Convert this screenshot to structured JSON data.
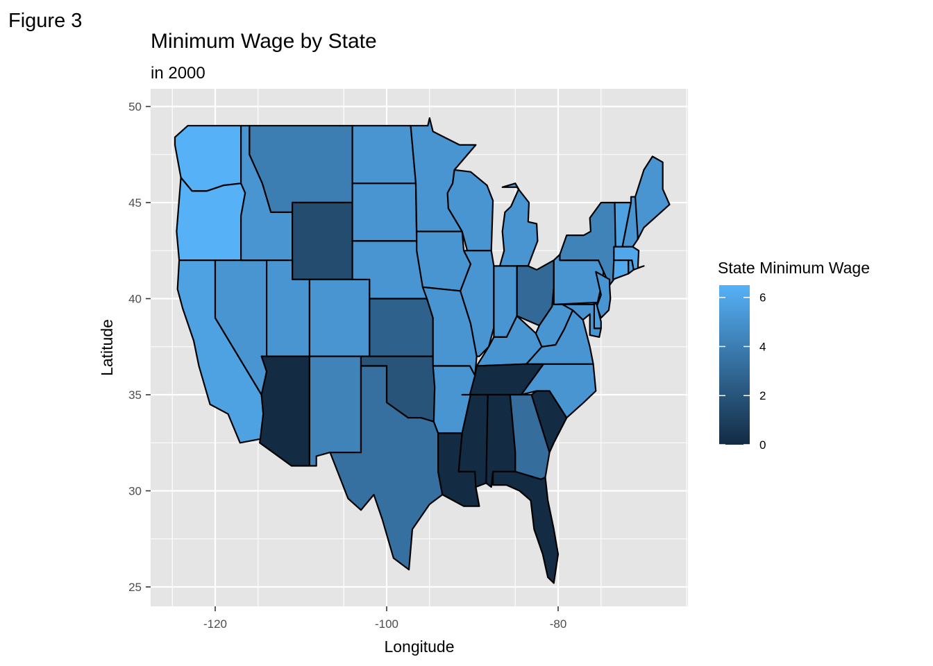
{
  "figure_label": "Figure 3",
  "title": "Minimum Wage by State",
  "subtitle": "in 2000",
  "colors": {
    "panel_bg": "#e5e5e5",
    "grid": "#ffffff",
    "low": "#132B43",
    "high": "#56B1F7",
    "state_border": "#000000"
  },
  "chart_data": {
    "type": "heatmap",
    "xlabel": "Longitude",
    "ylabel": "Latitude",
    "xlim": [
      -127.8,
      -65.5
    ],
    "ylim": [
      24,
      51
    ],
    "x_ticks": [
      -120,
      -100,
      -80
    ],
    "x_tick_labels": [
      "-120",
      "-100",
      "-80"
    ],
    "y_ticks": [
      25,
      30,
      35,
      40,
      45,
      50
    ],
    "y_tick_labels": [
      "25",
      "30",
      "35",
      "40",
      "45",
      "50"
    ],
    "grid": true,
    "legend": {
      "title": "State Minimum Wage",
      "placement": "right",
      "range": [
        0,
        6.5
      ],
      "breaks": [
        0,
        2,
        4,
        6
      ],
      "labels": [
        "0",
        "2",
        "4",
        "6"
      ]
    },
    "regions": [
      {
        "name": "Washington",
        "value": 6.5
      },
      {
        "name": "Oregon",
        "value": 6.5
      },
      {
        "name": "California",
        "value": 5.75
      },
      {
        "name": "Nevada",
        "value": 5.15
      },
      {
        "name": "Idaho",
        "value": 5.15
      },
      {
        "name": "Montana",
        "value": 4.0
      },
      {
        "name": "Wyoming",
        "value": 1.6
      },
      {
        "name": "Utah",
        "value": 5.15
      },
      {
        "name": "Arizona",
        "value": 0
      },
      {
        "name": "Colorado",
        "value": 5.15
      },
      {
        "name": "New Mexico",
        "value": 4.25
      },
      {
        "name": "North Dakota",
        "value": 5.15
      },
      {
        "name": "South Dakota",
        "value": 5.15
      },
      {
        "name": "Nebraska",
        "value": 5.15
      },
      {
        "name": "Kansas",
        "value": 2.65
      },
      {
        "name": "Oklahoma",
        "value": 2.0
      },
      {
        "name": "Texas",
        "value": 3.35
      },
      {
        "name": "Minnesota",
        "value": 5.15
      },
      {
        "name": "Iowa",
        "value": 5.15
      },
      {
        "name": "Missouri",
        "value": 5.15
      },
      {
        "name": "Arkansas",
        "value": 5.15
      },
      {
        "name": "Louisiana",
        "value": 0
      },
      {
        "name": "Wisconsin",
        "value": 5.15
      },
      {
        "name": "Illinois",
        "value": 5.15
      },
      {
        "name": "Indiana",
        "value": 5.15
      },
      {
        "name": "Michigan",
        "value": 5.15
      },
      {
        "name": "Ohio",
        "value": 3.0
      },
      {
        "name": "Kentucky",
        "value": 5.15
      },
      {
        "name": "Tennessee",
        "value": 0
      },
      {
        "name": "Mississippi",
        "value": 0
      },
      {
        "name": "Alabama",
        "value": 0
      },
      {
        "name": "Georgia",
        "value": 3.25
      },
      {
        "name": "Florida",
        "value": 0
      },
      {
        "name": "South Carolina",
        "value": 0
      },
      {
        "name": "North Carolina",
        "value": 5.15
      },
      {
        "name": "Virginia",
        "value": 5.15
      },
      {
        "name": "West Virginia",
        "value": 5.15
      },
      {
        "name": "Pennsylvania",
        "value": 5.15
      },
      {
        "name": "New York",
        "value": 4.25
      },
      {
        "name": "Vermont",
        "value": 5.75
      },
      {
        "name": "New Hampshire",
        "value": 5.15
      },
      {
        "name": "Maine",
        "value": 5.15
      },
      {
        "name": "Massachusetts",
        "value": 6.0
      },
      {
        "name": "Connecticut",
        "value": 6.15
      },
      {
        "name": "Rhode Island",
        "value": 5.65
      },
      {
        "name": "New Jersey",
        "value": 5.15
      },
      {
        "name": "Delaware",
        "value": 5.65
      },
      {
        "name": "Maryland",
        "value": 5.15
      }
    ]
  }
}
